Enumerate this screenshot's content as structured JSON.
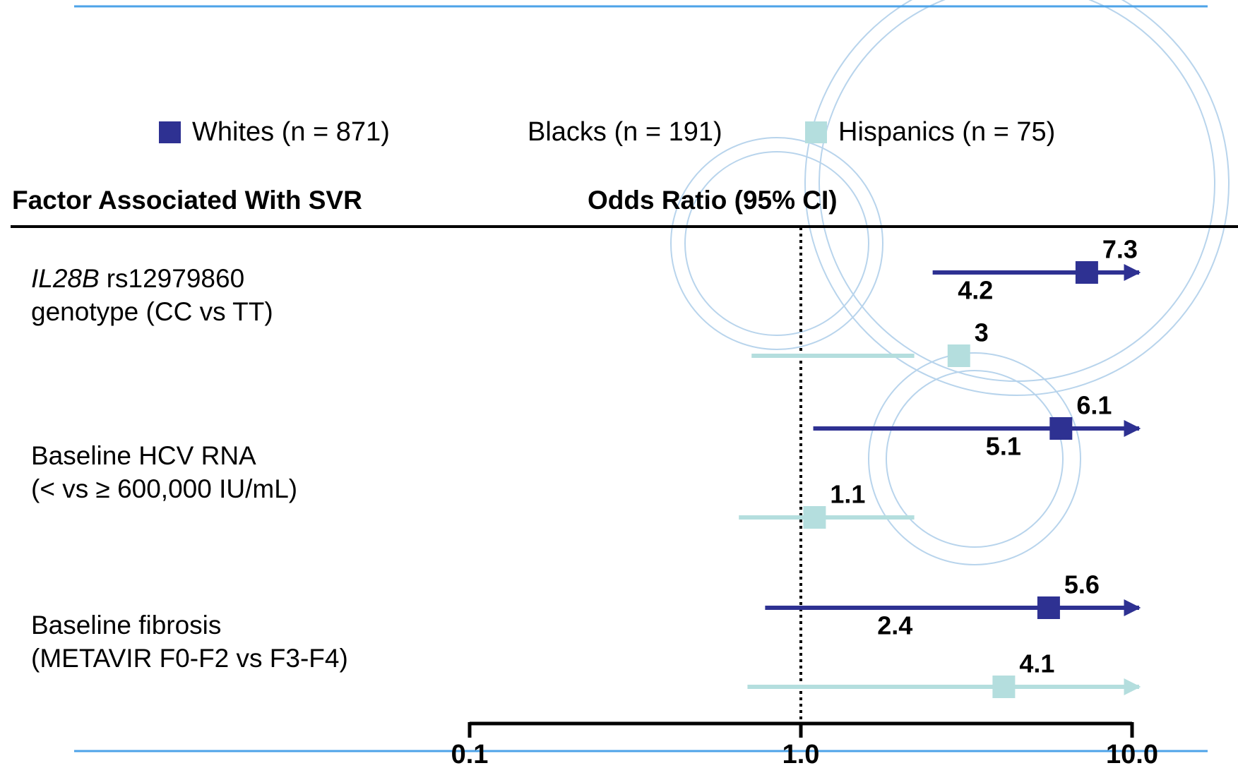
{
  "chart_data": {
    "type": "forest",
    "header_left": "Factor Associated With SVR",
    "header_right": "Odds Ratio (95% CI)",
    "factors": [
      {
        "italic": "IL28B",
        "lines": [
          "rs12979860",
          "genotype (CC vs TT)"
        ]
      },
      {
        "lines": [
          "Baseline HCV RNA",
          "(< vs ≥ 600,000 IU/mL)"
        ]
      },
      {
        "lines": [
          "Baseline fibrosis",
          "(METAVIR F0-F2 vs F3-F4)"
        ]
      }
    ],
    "series": [
      {
        "name": "Whites (n = 871)",
        "color": "#2e3192",
        "values": [
          7.3,
          6.1,
          5.6
        ],
        "ci_lower": [
          2.5,
          1.09,
          0.78
        ],
        "ci_upper": [
          null,
          null,
          null
        ]
      },
      {
        "name": "Blacks (n = 191)",
        "color": "#ffffff",
        "values": [
          4.2,
          5.1,
          2.4
        ]
      },
      {
        "name": "Hispanics (n = 75)",
        "color": "#b4dede",
        "values": [
          3.0,
          1.1,
          4.1
        ],
        "ci_lower": [
          0.71,
          0.65,
          0.69
        ],
        "ci_upper": [
          2.2,
          2.2,
          null
        ]
      }
    ],
    "log_x": true,
    "xlim": [
      0.1,
      10
    ],
    "xticks": [
      {
        "value": 0.1,
        "label": "0.1"
      },
      {
        "value": 1,
        "label": "1.0"
      },
      {
        "value": 10,
        "label": "10.0"
      }
    ],
    "reference_value": 1
  }
}
